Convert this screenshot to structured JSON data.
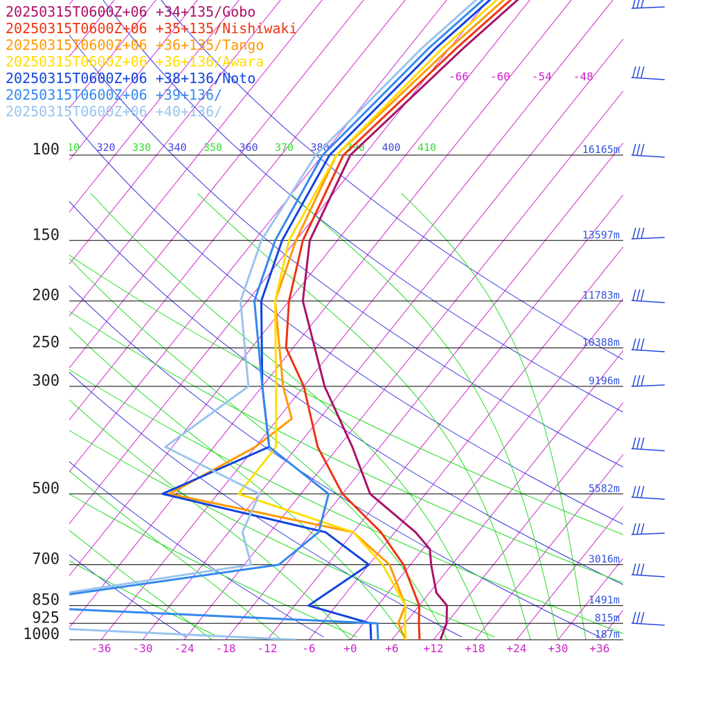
{
  "chart_data": {
    "type": "line",
    "chart_kind": "skew-T log-p sounding",
    "legend_placement": "top-left",
    "pressure_levels": [
      {
        "p": 100,
        "label": "100",
        "height": "16165m"
      },
      {
        "p": 150,
        "label": "150",
        "height": "13597m"
      },
      {
        "p": 200,
        "label": "200",
        "height": "11783m"
      },
      {
        "p": 250,
        "label": "250",
        "height": "10388m"
      },
      {
        "p": 300,
        "label": "300",
        "height": "9196m"
      },
      {
        "p": 500,
        "label": "500",
        "height": "5582m"
      },
      {
        "p": 700,
        "label": "700",
        "height": "3016m"
      },
      {
        "p": 850,
        "label": "850",
        "height": "1491m"
      },
      {
        "p": 925,
        "label": "925",
        "height": "815m"
      },
      {
        "p": 1000,
        "label": "1000",
        "height": "187m"
      }
    ],
    "x_ticks": [
      {
        "v": -36,
        "label": "-36"
      },
      {
        "v": -30,
        "label": "-30"
      },
      {
        "v": -24,
        "label": "-24"
      },
      {
        "v": -18,
        "label": "-18"
      },
      {
        "v": -12,
        "label": "-12"
      },
      {
        "v": -6,
        "label": "-6"
      },
      {
        "v": 0,
        "label": "+0"
      },
      {
        "v": 6,
        "label": "+6"
      },
      {
        "v": 12,
        "label": "+12"
      },
      {
        "v": 18,
        "label": "+18"
      },
      {
        "v": 24,
        "label": "+24"
      },
      {
        "v": 30,
        "label": "+30"
      },
      {
        "v": 36,
        "label": "+36"
      }
    ],
    "top_isotherm_labels": [
      "-66",
      "-60",
      "-54",
      "-48"
    ],
    "theta_labels": [
      {
        "label": "310",
        "color": "#33dd33"
      },
      {
        "label": "320",
        "color": "#4444dd"
      },
      {
        "label": "330",
        "color": "#33dd33"
      },
      {
        "label": "340",
        "color": "#4444dd"
      },
      {
        "label": "350",
        "color": "#33dd33"
      },
      {
        "label": "360",
        "color": "#4444dd"
      },
      {
        "label": "370",
        "color": "#33dd33"
      },
      {
        "label": "380",
        "color": "#4444dd"
      },
      {
        "label": "390",
        "color": "#33dd33"
      },
      {
        "label": "400",
        "color": "#4444dd"
      },
      {
        "label": "410",
        "color": "#33dd33"
      }
    ],
    "colors": {
      "isotherm": "#cc22cc",
      "dry_adiabat": "#3333dd",
      "moist_adiabat": "#22dd22",
      "isobar": "#000000",
      "height_label": "#3355dd",
      "wind_barb": "#2244dd"
    },
    "series": [
      {
        "name": "20250315T0600Z+06 +34+135/Gobo",
        "color": "#aa1166",
        "points": [
          [
            40,
            -48
          ],
          [
            60,
            -52
          ],
          [
            100,
            -56
          ],
          [
            150,
            -52
          ],
          [
            200,
            -46
          ],
          [
            300,
            -33
          ],
          [
            400,
            -22
          ],
          [
            500,
            -14
          ],
          [
            600,
            -3
          ],
          [
            650,
            1
          ],
          [
            700,
            3
          ],
          [
            800,
            7
          ],
          [
            850,
            10
          ],
          [
            925,
            12
          ],
          [
            1000,
            13
          ]
        ]
      },
      {
        "name": "20250315T0600Z+06 +35+135/Nishiwaki",
        "color": "#ee3311",
        "points": [
          [
            40,
            -49
          ],
          [
            60,
            -53
          ],
          [
            100,
            -57
          ],
          [
            150,
            -53
          ],
          [
            200,
            -48
          ],
          [
            250,
            -43
          ],
          [
            300,
            -36
          ],
          [
            400,
            -27
          ],
          [
            500,
            -18
          ],
          [
            600,
            -8
          ],
          [
            700,
            -1
          ],
          [
            850,
            6
          ],
          [
            925,
            8
          ],
          [
            1000,
            10
          ]
        ]
      },
      {
        "name": "20250315T0600Z+06 +36+135/Tango",
        "color": "#ff9900",
        "points": [
          [
            40,
            -50
          ],
          [
            60,
            -54
          ],
          [
            100,
            -58
          ],
          [
            150,
            -54
          ],
          [
            200,
            -50
          ],
          [
            300,
            -39
          ],
          [
            350,
            -34
          ],
          [
            400,
            -36
          ],
          [
            500,
            -43
          ],
          [
            600,
            -12
          ],
          [
            700,
            -3
          ],
          [
            850,
            4
          ],
          [
            925,
            5
          ],
          [
            1000,
            8
          ]
        ]
      },
      {
        "name": "20250315T0600Z+06 +36+136/Awara",
        "color": "#ffdd00",
        "points": [
          [
            40,
            -51
          ],
          [
            60,
            -55
          ],
          [
            100,
            -58
          ],
          [
            150,
            -55
          ],
          [
            200,
            -50
          ],
          [
            300,
            -40
          ],
          [
            400,
            -33
          ],
          [
            500,
            -33
          ],
          [
            600,
            -12
          ],
          [
            700,
            -4
          ],
          [
            850,
            4
          ],
          [
            925,
            6
          ],
          [
            1000,
            8
          ]
        ]
      },
      {
        "name": "20250315T0600Z+06 +38+136/Noto",
        "color": "#1144dd",
        "points": [
          [
            40,
            -52
          ],
          [
            60,
            -56
          ],
          [
            100,
            -59
          ],
          [
            150,
            -56
          ],
          [
            200,
            -52
          ],
          [
            300,
            -42
          ],
          [
            400,
            -34
          ],
          [
            500,
            -44
          ],
          [
            600,
            -16
          ],
          [
            700,
            -6
          ],
          [
            850,
            -10
          ],
          [
            925,
            1
          ],
          [
            1000,
            3
          ]
        ]
      },
      {
        "name": "20250315T0600Z+06 +39+136/",
        "color": "#3388ee",
        "points": [
          [
            40,
            -53
          ],
          [
            60,
            -57
          ],
          [
            100,
            -60
          ],
          [
            150,
            -57
          ],
          [
            200,
            -53
          ],
          [
            300,
            -42
          ],
          [
            400,
            -34
          ],
          [
            500,
            -20
          ],
          [
            600,
            -17
          ],
          [
            700,
            -19
          ],
          [
            850,
            -56
          ],
          [
            925,
            2
          ],
          [
            1000,
            4
          ]
        ]
      },
      {
        "name": "20250315T0600Z+06 +40+136/",
        "color": "#99c4ee",
        "points": [
          [
            40,
            -54
          ],
          [
            60,
            -58
          ],
          [
            100,
            -61
          ],
          [
            150,
            -59
          ],
          [
            200,
            -55
          ],
          [
            300,
            -44
          ],
          [
            400,
            -49
          ],
          [
            500,
            -30
          ],
          [
            600,
            -28
          ],
          [
            700,
            -23
          ],
          [
            850,
            -57
          ],
          [
            925,
            -60
          ],
          [
            1000,
            -8
          ]
        ]
      }
    ]
  }
}
